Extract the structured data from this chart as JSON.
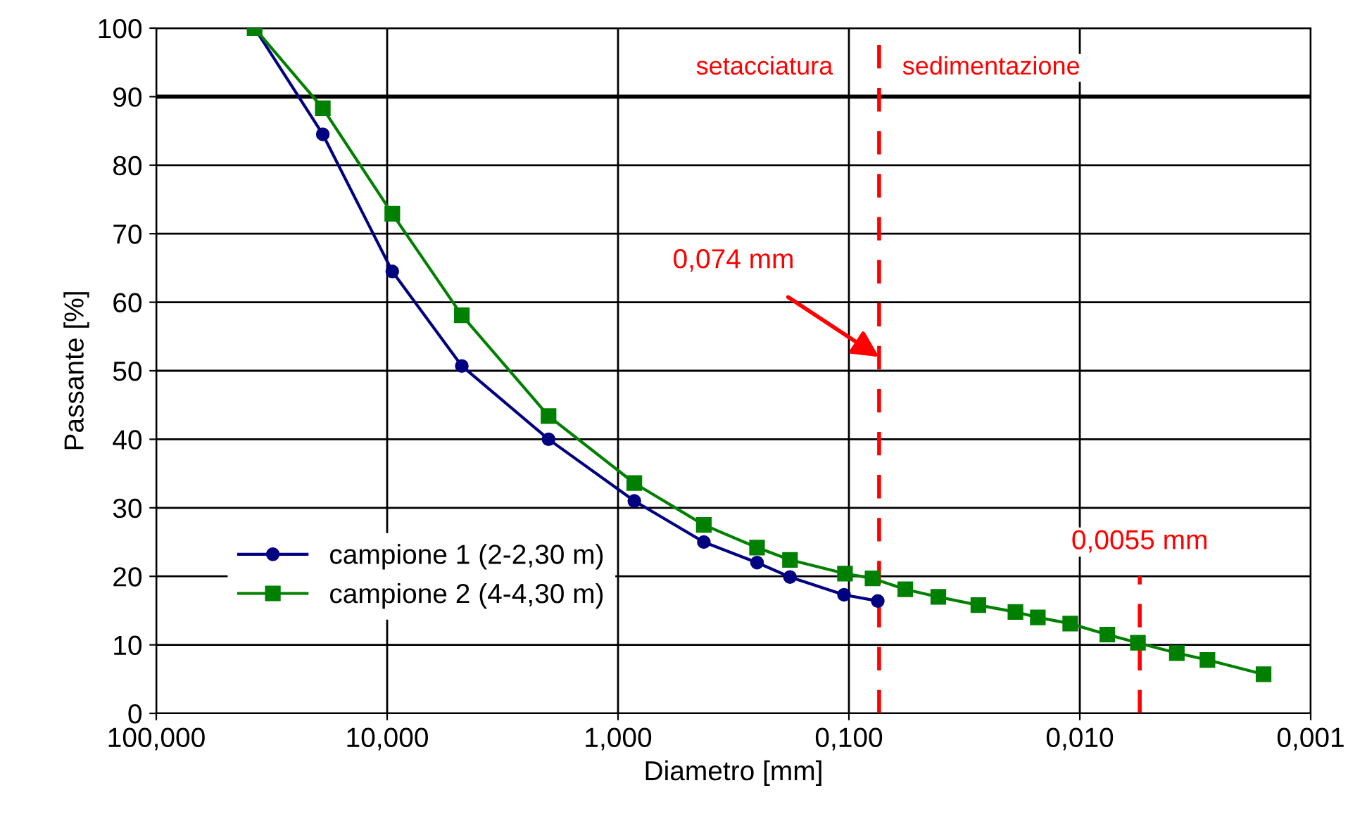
{
  "chart_data": {
    "type": "line",
    "xlabel": "Diametro [mm]",
    "ylabel": "Passante [%]",
    "log": "x",
    "xlim": [
      100,
      0.001
    ],
    "xticks": [
      {
        "value": 100,
        "label": "100,000"
      },
      {
        "value": 10,
        "label": "10,000"
      },
      {
        "value": 1,
        "label": "1,000"
      },
      {
        "value": 0.1,
        "label": "0,100"
      },
      {
        "value": 0.01,
        "label": "0,010"
      },
      {
        "value": 0.001,
        "label": "0,001"
      }
    ],
    "ylim": [
      0,
      100
    ],
    "yticks": [
      0,
      10,
      20,
      30,
      40,
      50,
      60,
      70,
      80,
      90,
      100
    ],
    "grid": true,
    "legend": "left",
    "series": [
      {
        "name": "campione 1 (2-2,30 m)",
        "color": "#000080",
        "marker": "circle",
        "x": [
          37.5,
          19,
          9.5,
          4.75,
          2,
          0.85,
          0.425,
          0.25,
          0.18,
          0.105,
          0.075
        ],
        "values": [
          100,
          84.5,
          64.5,
          50.7,
          40,
          31,
          25,
          22,
          19.9,
          17.3,
          16.4
        ]
      },
      {
        "name": "campione 2 (4-4,30 m)",
        "color": "#008000",
        "marker": "square",
        "x": [
          37.5,
          19,
          9.5,
          4.75,
          2,
          0.85,
          0.425,
          0.25,
          0.18,
          0.104,
          0.079,
          0.057,
          0.041,
          0.0275,
          0.019,
          0.0152,
          0.011,
          0.0076,
          0.0056,
          0.0038,
          0.0028,
          0.0016
        ],
        "values": [
          100,
          88.3,
          72.9,
          58.1,
          43.4,
          33.6,
          27.5,
          24.2,
          22.4,
          20.4,
          19.7,
          18.1,
          17.0,
          15.8,
          14.8,
          14.0,
          13.1,
          11.5,
          10.3,
          8.8,
          7.8,
          5.7
        ]
      }
    ],
    "ref_lines": [
      {
        "axis": "y",
        "value": 90,
        "color": "#000000",
        "line_style": "solid"
      },
      {
        "axis": "x",
        "value": 0.074,
        "label": "0,074 mm",
        "color": "#ff0000",
        "line_style": "dashed"
      },
      {
        "axis": "x",
        "value": 0.0055,
        "label": "0,0055 mm",
        "color": "#ff0000",
        "line_style": "dashed"
      }
    ],
    "annotations": [
      "setacciatura",
      "sedimentazione"
    ]
  }
}
